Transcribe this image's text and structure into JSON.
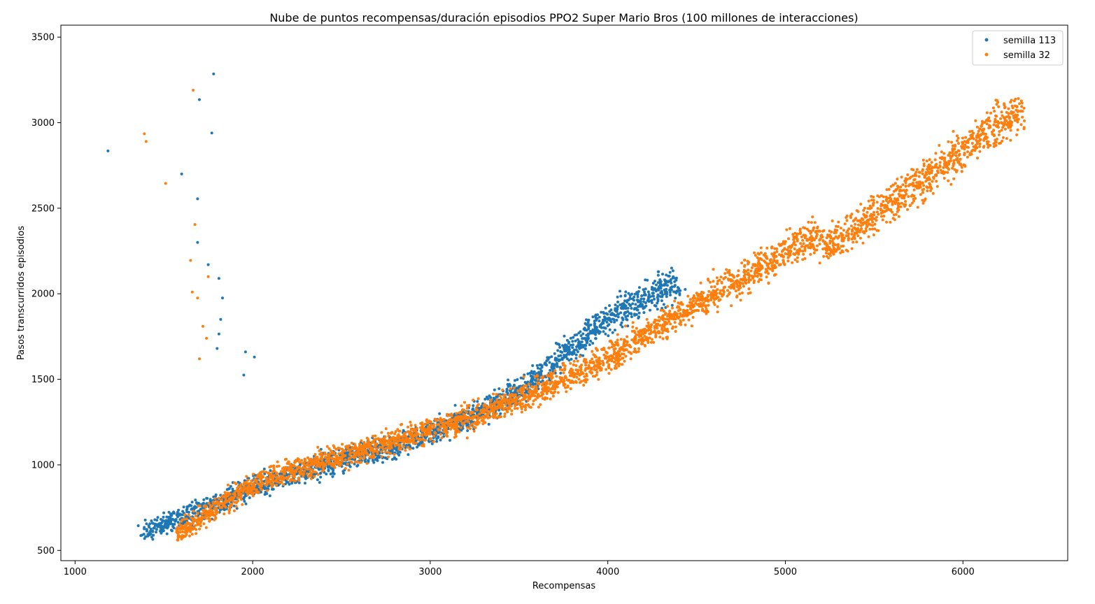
{
  "chart_data": {
    "type": "scatter",
    "title": "Nube de puntos recompensas/duración episodios PPO2 Super Mario Bros (100 millones de interacciones)",
    "xlabel": "Recompensas",
    "ylabel": "Pasos transcurridos episodios",
    "xlim": [
      920,
      6590
    ],
    "ylim": [
      440,
      3570
    ],
    "xticks": [
      1000,
      2000,
      3000,
      4000,
      5000,
      6000
    ],
    "yticks": [
      500,
      1000,
      1500,
      2000,
      2500,
      3000,
      3500
    ],
    "grid": false,
    "legend_position": "top-right",
    "series": [
      {
        "name": "semilla 113",
        "color": "#1f77b4",
        "trend": [
          [
            1380,
            610
          ],
          [
            1500,
            650
          ],
          [
            1600,
            690
          ],
          [
            1700,
            730
          ],
          [
            1800,
            770
          ],
          [
            1900,
            820
          ],
          [
            2000,
            870
          ],
          [
            2100,
            900
          ],
          [
            2200,
            940
          ],
          [
            2300,
            970
          ],
          [
            2400,
            1000
          ],
          [
            2500,
            1030
          ],
          [
            2600,
            1060
          ],
          [
            2700,
            1080
          ],
          [
            2800,
            1110
          ],
          [
            2900,
            1150
          ],
          [
            3000,
            1190
          ],
          [
            3100,
            1230
          ],
          [
            3200,
            1270
          ],
          [
            3300,
            1320
          ],
          [
            3400,
            1380
          ],
          [
            3500,
            1440
          ],
          [
            3600,
            1510
          ],
          [
            3700,
            1610
          ],
          [
            3800,
            1690
          ],
          [
            3900,
            1780
          ],
          [
            4000,
            1860
          ],
          [
            4100,
            1920
          ],
          [
            4200,
            1980
          ],
          [
            4300,
            2030
          ],
          [
            4400,
            2060
          ]
        ],
        "outliers": [
          [
            1185,
            2835
          ],
          [
            1600,
            2700
          ],
          [
            1690,
            2555
          ],
          [
            1700,
            3135
          ],
          [
            1770,
            2940
          ],
          [
            1780,
            3285
          ],
          [
            1750,
            2170
          ],
          [
            1690,
            2300
          ],
          [
            1810,
            2090
          ],
          [
            1830,
            1975
          ],
          [
            1820,
            1850
          ],
          [
            1810,
            1765
          ],
          [
            1800,
            1680
          ],
          [
            1960,
            1660
          ],
          [
            2010,
            1630
          ],
          [
            1950,
            1525
          ]
        ]
      },
      {
        "name": "semilla 32",
        "color": "#ff7f0e",
        "trend": [
          [
            1570,
            600
          ],
          [
            1650,
            650
          ],
          [
            1750,
            720
          ],
          [
            1850,
            790
          ],
          [
            1950,
            850
          ],
          [
            2050,
            900
          ],
          [
            2150,
            940
          ],
          [
            2250,
            980
          ],
          [
            2350,
            1010
          ],
          [
            2450,
            1040
          ],
          [
            2550,
            1070
          ],
          [
            2650,
            1100
          ],
          [
            2750,
            1130
          ],
          [
            2850,
            1160
          ],
          [
            2950,
            1190
          ],
          [
            3050,
            1220
          ],
          [
            3150,
            1250
          ],
          [
            3250,
            1290
          ],
          [
            3350,
            1330
          ],
          [
            3450,
            1370
          ],
          [
            3550,
            1410
          ],
          [
            3650,
            1450
          ],
          [
            3750,
            1490
          ],
          [
            3850,
            1540
          ],
          [
            3950,
            1600
          ],
          [
            4050,
            1660
          ],
          [
            4150,
            1720
          ],
          [
            4250,
            1790
          ],
          [
            4350,
            1850
          ],
          [
            4450,
            1910
          ],
          [
            4550,
            1970
          ],
          [
            4650,
            2030
          ],
          [
            4750,
            2090
          ],
          [
            4850,
            2150
          ],
          [
            4950,
            2210
          ],
          [
            5050,
            2280
          ],
          [
            5150,
            2340
          ],
          [
            5250,
            2290
          ],
          [
            5350,
            2340
          ],
          [
            5450,
            2420
          ],
          [
            5550,
            2500
          ],
          [
            5650,
            2570
          ],
          [
            5750,
            2640
          ],
          [
            5850,
            2720
          ],
          [
            5950,
            2800
          ],
          [
            6050,
            2880
          ],
          [
            6150,
            2960
          ],
          [
            6250,
            3030
          ],
          [
            6330,
            3050
          ]
        ],
        "outliers": [
          [
            1390,
            2935
          ],
          [
            1400,
            2890
          ],
          [
            1510,
            2645
          ],
          [
            1650,
            2195
          ],
          [
            1660,
            2010
          ],
          [
            1665,
            3190
          ],
          [
            1675,
            2405
          ],
          [
            1690,
            1975
          ],
          [
            1720,
            1810
          ],
          [
            1740,
            1740
          ],
          [
            1750,
            2100
          ],
          [
            1700,
            1620
          ]
        ]
      }
    ]
  }
}
